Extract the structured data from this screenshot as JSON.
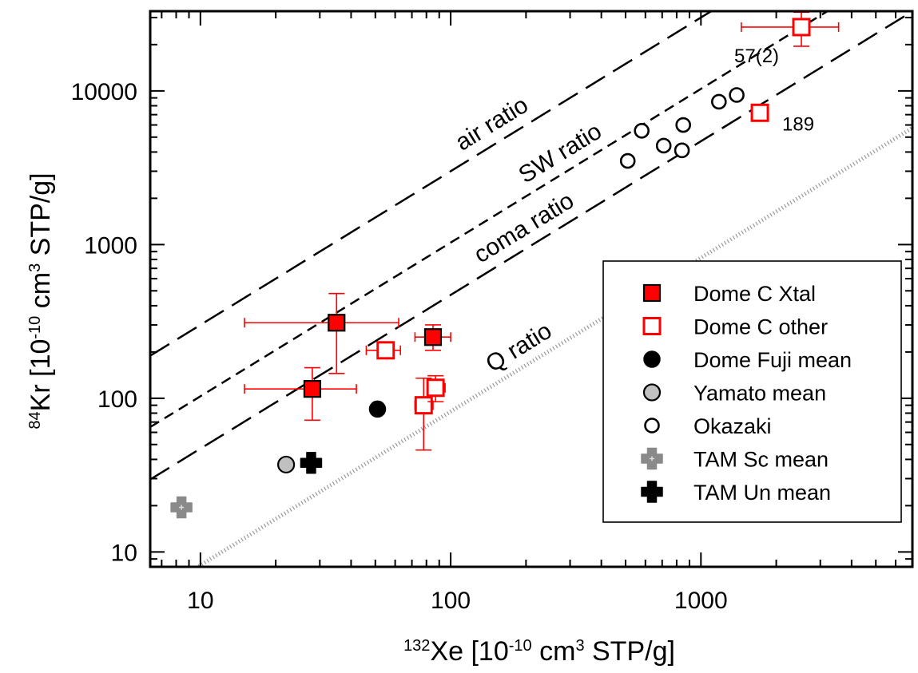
{
  "chart_data": {
    "type": "scatter",
    "xlabel": {
      "sup": "132",
      "main": "Xe [10",
      "exp": "-10",
      "mid": " cm",
      "exp2": "3",
      "end": " STP/g]"
    },
    "ylabel": {
      "sup": "84",
      "main": "Kr [10",
      "exp": "-10",
      "mid": " cm",
      "exp2": "3",
      "end": " STP/g]"
    },
    "x_scale": "log",
    "y_scale": "log",
    "xlim": [
      6.3,
      7000
    ],
    "ylim": [
      8,
      33000
    ],
    "x_ticks": [
      10,
      100,
      1000
    ],
    "x_tick_labels": [
      "10",
      "100",
      "1000"
    ],
    "y_ticks": [
      10,
      100,
      1000,
      10000
    ],
    "y_tick_labels": [
      "10",
      "100",
      "1000",
      "10000"
    ],
    "reference_lines": [
      {
        "label": "air ratio",
        "ratio": 30.0,
        "style": "long-dash"
      },
      {
        "label": "SW ratio",
        "ratio": 10.3,
        "style": "short-dash"
      },
      {
        "label": "coma ratio",
        "ratio": 4.7,
        "style": "long-dash"
      },
      {
        "label": "Q ratio",
        "ratio": 0.82,
        "style": "dotted-gray"
      }
    ],
    "series": [
      {
        "name": "Dome C Xtal",
        "marker": "square-filled",
        "color": "#ff0000",
        "points": [
          {
            "x": 35,
            "y": 310,
            "xerr": [
              15,
              62
            ],
            "yerr": [
              145,
              480
            ]
          },
          {
            "x": 28,
            "y": 115,
            "xerr": [
              15,
              42
            ],
            "yerr": [
              72,
              158
            ]
          },
          {
            "x": 85,
            "y": 250,
            "xerr": [
              72,
              100
            ],
            "yerr": [
              205,
              300
            ]
          }
        ]
      },
      {
        "name": "Dome C other",
        "marker": "square-open",
        "color": "#ff0000",
        "points": [
          {
            "x": 55,
            "y": 205,
            "xerr": [
              46,
              63
            ],
            "yerr": [
              195,
              215
            ]
          },
          {
            "x": 78,
            "y": 90,
            "xerr": [
              72,
              85
            ],
            "yerr": [
              46,
              135
            ]
          },
          {
            "x": 87,
            "y": 117,
            "xerr": [
              81,
              95
            ],
            "yerr": [
              95,
              140
            ]
          },
          {
            "x": 1720,
            "y": 7200
          },
          {
            "x": 2520,
            "y": 26000,
            "xerr": [
              1450,
              3550
            ],
            "yerr": [
              19500,
              32500
            ]
          }
        ]
      },
      {
        "name": "Dome Fuji mean",
        "marker": "circle-filled",
        "color": "#000000",
        "points": [
          {
            "x": 51,
            "y": 85
          }
        ]
      },
      {
        "name": "Yamato mean",
        "marker": "circle-gray",
        "color": "#c0c0c0",
        "points": [
          {
            "x": 22,
            "y": 37
          }
        ]
      },
      {
        "name": "Okazaki",
        "marker": "circle-open",
        "color": "#000000",
        "points": [
          {
            "x": 510,
            "y": 3500
          },
          {
            "x": 580,
            "y": 5500
          },
          {
            "x": 710,
            "y": 4400
          },
          {
            "x": 840,
            "y": 4100
          },
          {
            "x": 850,
            "y": 6000
          },
          {
            "x": 1180,
            "y": 8500
          },
          {
            "x": 1390,
            "y": 9400
          }
        ]
      },
      {
        "name": "TAM Sc mean",
        "marker": "cross-gray",
        "color": "#888888",
        "points": [
          {
            "x": 8.4,
            "y": 19.5
          }
        ]
      },
      {
        "name": "TAM Un mean",
        "marker": "cross-black",
        "color": "#000000",
        "points": [
          {
            "x": 27.7,
            "y": 38
          }
        ]
      }
    ],
    "annotations": [
      {
        "text": "57(2)",
        "x": 2520,
        "y": 26000
      },
      {
        "text": "189",
        "x": 1720,
        "y": 7200
      }
    ],
    "legend": {
      "placement": "right",
      "entries": [
        "Dome C Xtal",
        "Dome C other",
        "Dome Fuji mean",
        "Yamato mean",
        "Okazaki",
        "TAM Sc mean",
        "TAM Un mean"
      ]
    },
    "grid": false
  }
}
